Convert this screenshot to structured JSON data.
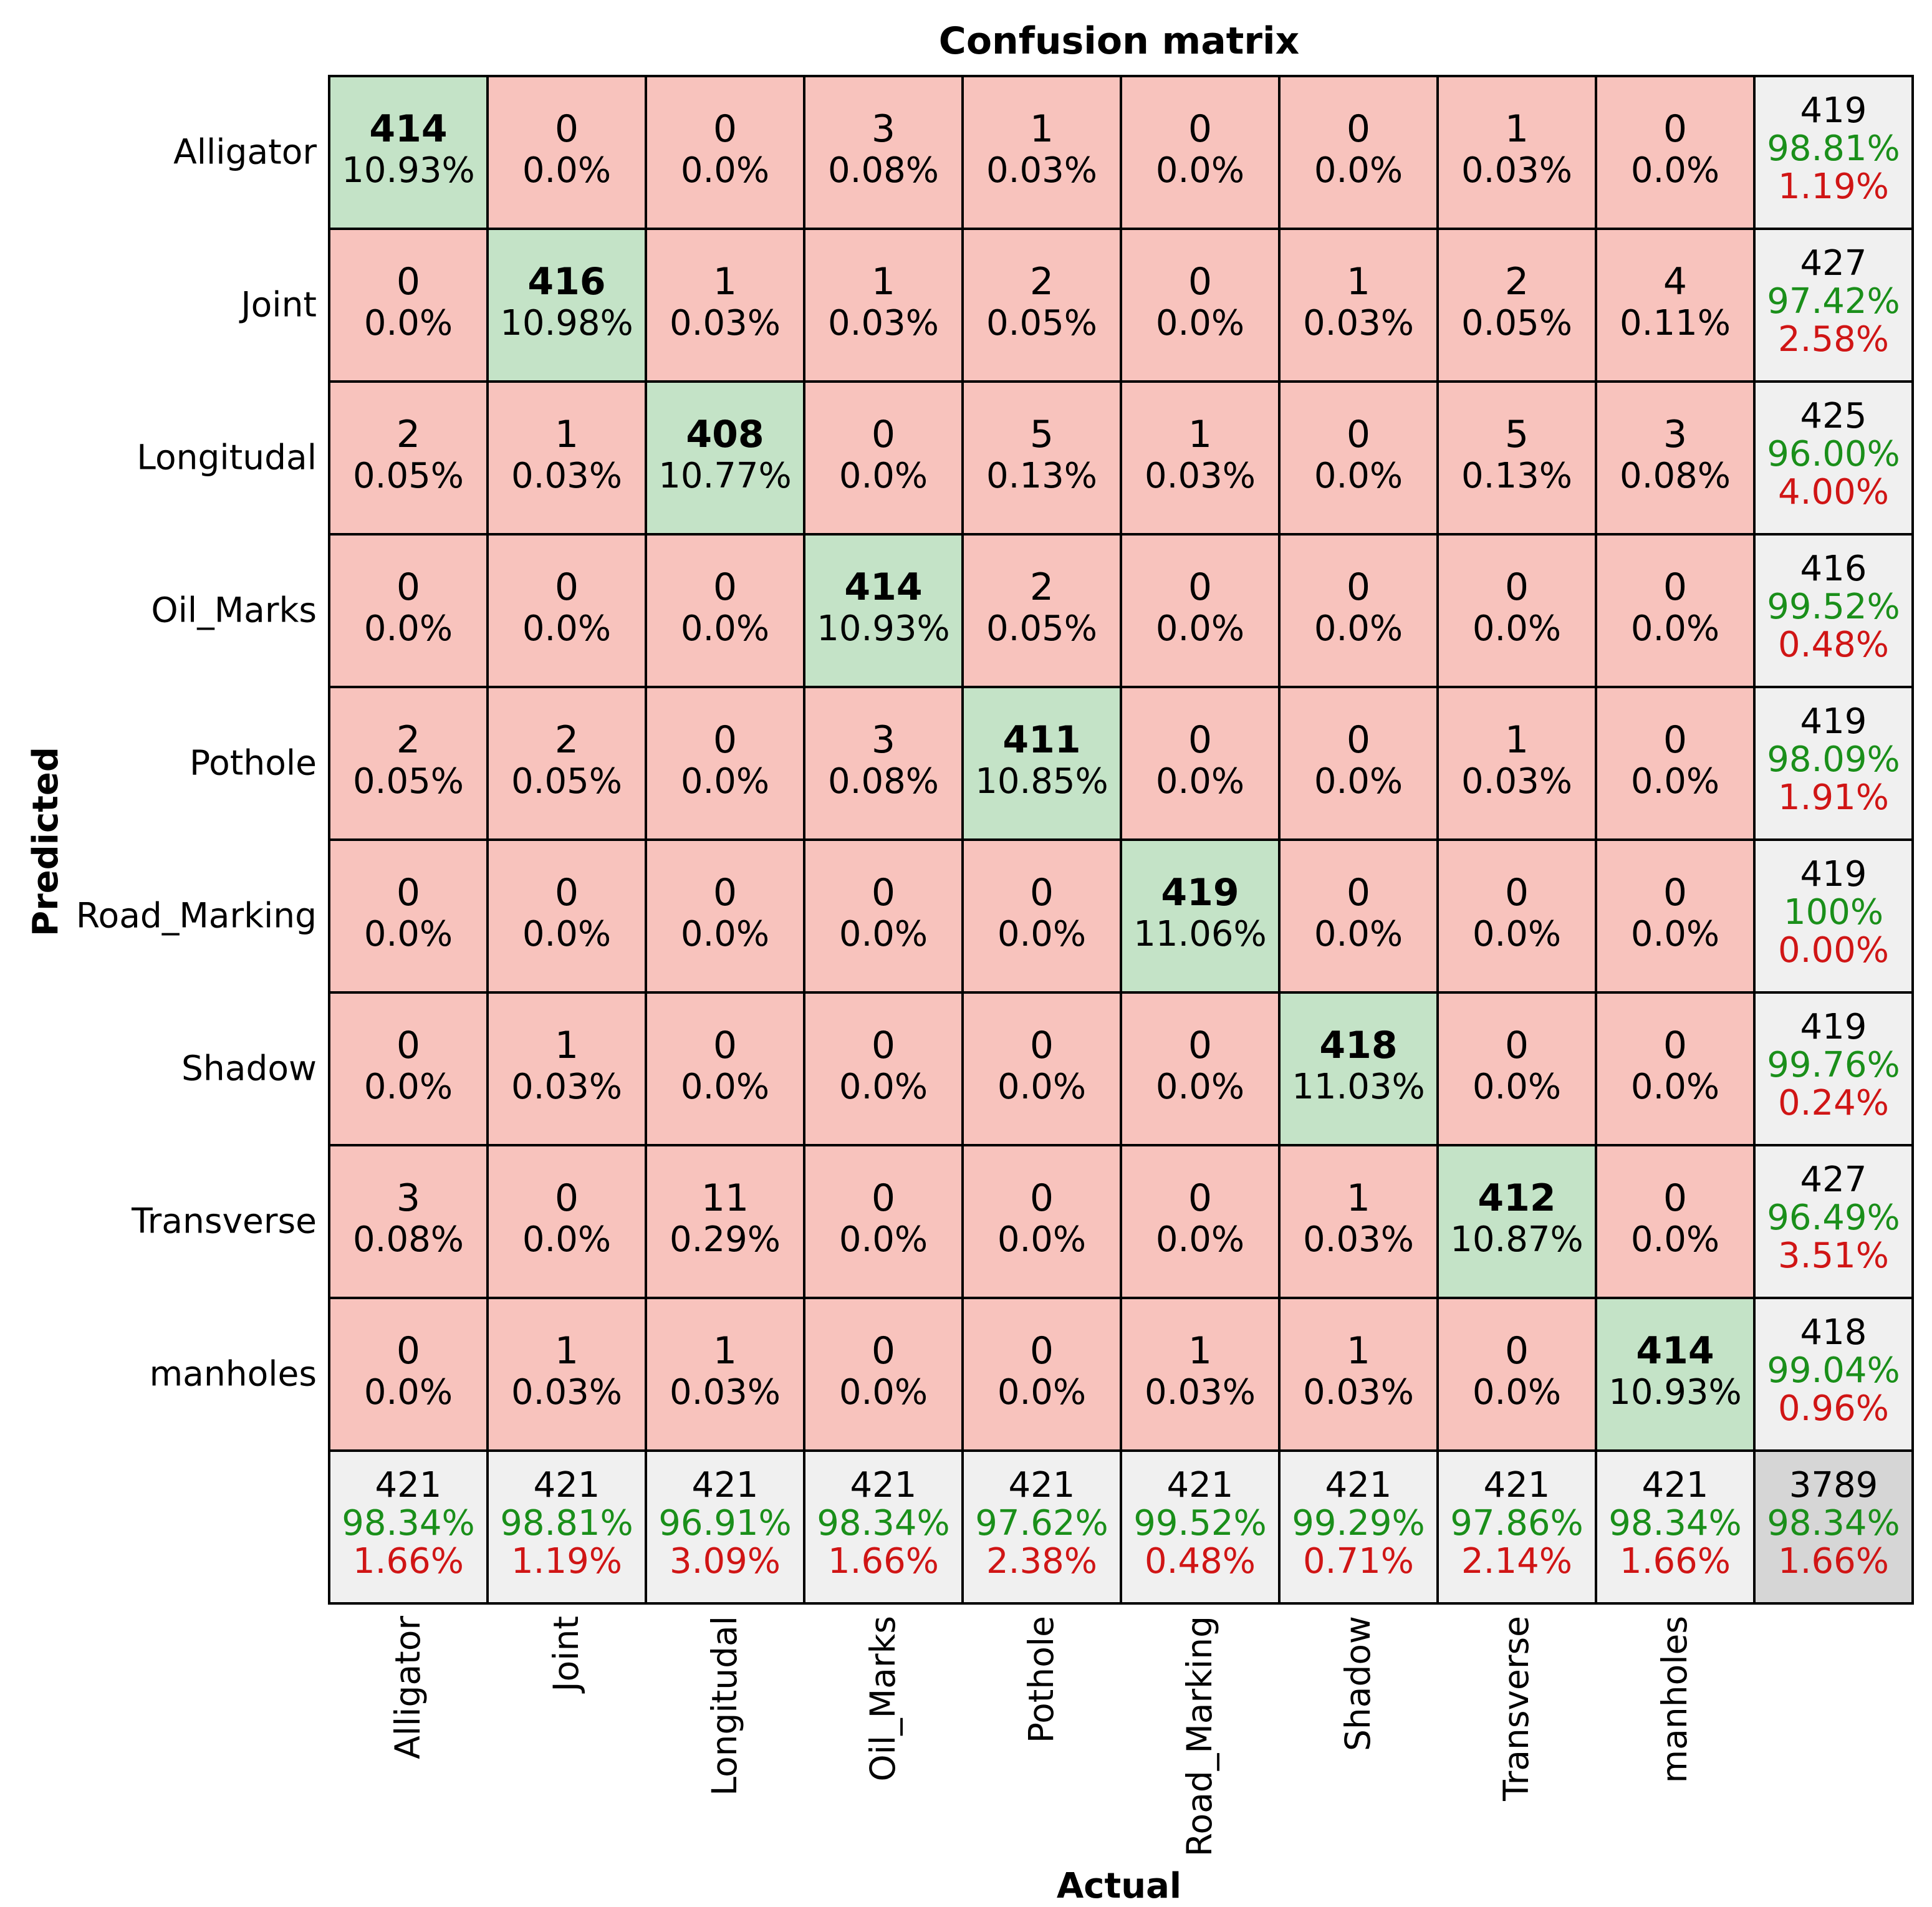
{
  "chart_data": {
    "type": "heatmap",
    "title": "Confusion matrix",
    "xlabel": "Actual",
    "ylabel": "Predicted",
    "labels": [
      "Alligator",
      "Joint",
      "Longitudal",
      "Oil_Marks",
      "Pothole",
      "Road_Marking",
      "Shadow",
      "Transverse",
      "manholes"
    ],
    "matrix": [
      [
        414,
        0,
        0,
        3,
        1,
        0,
        0,
        1,
        0
      ],
      [
        0,
        416,
        1,
        1,
        2,
        0,
        1,
        2,
        4
      ],
      [
        2,
        1,
        408,
        0,
        5,
        1,
        0,
        5,
        3
      ],
      [
        0,
        0,
        0,
        414,
        2,
        0,
        0,
        0,
        0
      ],
      [
        2,
        2,
        0,
        3,
        411,
        0,
        0,
        1,
        0
      ],
      [
        0,
        0,
        0,
        0,
        0,
        419,
        0,
        0,
        0
      ],
      [
        0,
        1,
        0,
        0,
        0,
        0,
        418,
        0,
        0
      ],
      [
        3,
        0,
        11,
        0,
        0,
        0,
        1,
        412,
        0
      ],
      [
        0,
        1,
        1,
        0,
        0,
        1,
        1,
        0,
        414
      ]
    ],
    "cell_percents": [
      [
        "10.93%",
        "0.0%",
        "0.0%",
        "0.08%",
        "0.03%",
        "0.0%",
        "0.0%",
        "0.03%",
        "0.0%"
      ],
      [
        "0.0%",
        "10.98%",
        "0.03%",
        "0.03%",
        "0.05%",
        "0.0%",
        "0.03%",
        "0.05%",
        "0.11%"
      ],
      [
        "0.05%",
        "0.03%",
        "10.77%",
        "0.0%",
        "0.13%",
        "0.03%",
        "0.0%",
        "0.13%",
        "0.08%"
      ],
      [
        "0.0%",
        "0.0%",
        "0.0%",
        "10.93%",
        "0.05%",
        "0.0%",
        "0.0%",
        "0.0%",
        "0.0%"
      ],
      [
        "0.05%",
        "0.05%",
        "0.0%",
        "0.08%",
        "10.85%",
        "0.0%",
        "0.0%",
        "0.03%",
        "0.0%"
      ],
      [
        "0.0%",
        "0.0%",
        "0.0%",
        "0.0%",
        "0.0%",
        "11.06%",
        "0.0%",
        "0.0%",
        "0.0%"
      ],
      [
        "0.0%",
        "0.03%",
        "0.0%",
        "0.0%",
        "0.0%",
        "0.0%",
        "11.03%",
        "0.0%",
        "0.0%"
      ],
      [
        "0.08%",
        "0.0%",
        "0.29%",
        "0.0%",
        "0.0%",
        "0.0%",
        "0.03%",
        "10.87%",
        "0.0%"
      ],
      [
        "0.0%",
        "0.03%",
        "0.03%",
        "0.0%",
        "0.0%",
        "0.03%",
        "0.03%",
        "0.0%",
        "10.93%"
      ]
    ],
    "row_summary": [
      {
        "total": "419",
        "correct": "98.81%",
        "error": "1.19%"
      },
      {
        "total": "427",
        "correct": "97.42%",
        "error": "2.58%"
      },
      {
        "total": "425",
        "correct": "96.00%",
        "error": "4.00%"
      },
      {
        "total": "416",
        "correct": "99.52%",
        "error": "0.48%"
      },
      {
        "total": "419",
        "correct": "98.09%",
        "error": "1.91%"
      },
      {
        "total": "419",
        "correct": "100%",
        "error": "0.00%"
      },
      {
        "total": "419",
        "correct": "99.76%",
        "error": "0.24%"
      },
      {
        "total": "427",
        "correct": "96.49%",
        "error": "3.51%"
      },
      {
        "total": "418",
        "correct": "99.04%",
        "error": "0.96%"
      }
    ],
    "col_summary": [
      {
        "total": "421",
        "correct": "98.34%",
        "error": "1.66%"
      },
      {
        "total": "421",
        "correct": "98.81%",
        "error": "1.19%"
      },
      {
        "total": "421",
        "correct": "96.91%",
        "error": "3.09%"
      },
      {
        "total": "421",
        "correct": "98.34%",
        "error": "1.66%"
      },
      {
        "total": "421",
        "correct": "97.62%",
        "error": "2.38%"
      },
      {
        "total": "421",
        "correct": "99.52%",
        "error": "0.48%"
      },
      {
        "total": "421",
        "correct": "99.29%",
        "error": "0.71%"
      },
      {
        "total": "421",
        "correct": "97.86%",
        "error": "2.14%"
      },
      {
        "total": "421",
        "correct": "98.34%",
        "error": "1.66%"
      }
    ],
    "overall": {
      "total": "3789",
      "correct": "98.34%",
      "error": "1.66%"
    },
    "colors": {
      "correct_cell": "#c4e3c7",
      "error_cell": "#f8c3bd",
      "summary_cell": "#f0f0f0",
      "overall_cell": "#d6d6d6",
      "correct_text": "#1a8f1a",
      "error_text": "#d01515"
    }
  }
}
